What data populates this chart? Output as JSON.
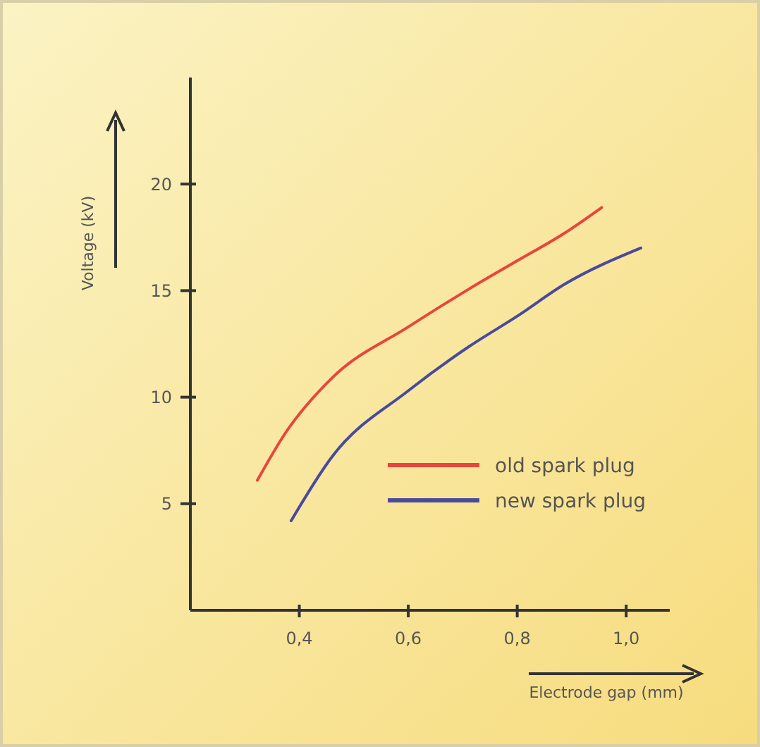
{
  "chart_data": {
    "type": "line",
    "xlabel": "Electrode gap (mm)",
    "ylabel": "Voltage (kV)",
    "xlim": [
      0.2,
      1.08
    ],
    "ylim": [
      0,
      25
    ],
    "xticks": [
      {
        "value": 0.4,
        "label": "0,4"
      },
      {
        "value": 0.6,
        "label": "0,6"
      },
      {
        "value": 0.8,
        "label": "0,8"
      },
      {
        "value": 1.0,
        "label": "1,0"
      }
    ],
    "yticks": [
      5,
      10,
      15,
      20
    ],
    "series": [
      {
        "name": "old spark plug",
        "color": "#e8453c",
        "x": [
          0.323,
          0.374,
          0.46,
          0.6,
          0.713,
          0.8,
          0.887,
          0.955
        ],
        "values": [
          6.1,
          8.3,
          10.9,
          13.3,
          15.1,
          16.4,
          17.7,
          18.9
        ]
      },
      {
        "name": "new spark plug",
        "color": "#4a4a9a",
        "x": [
          0.385,
          0.46,
          0.6,
          0.713,
          0.8,
          0.887,
          1.027
        ],
        "values": [
          4.2,
          7.2,
          10.3,
          12.4,
          13.8,
          15.3,
          17.0
        ]
      }
    ],
    "legend": "bottom right",
    "grid": false,
    "line_style": "solid",
    "marker": "none"
  }
}
